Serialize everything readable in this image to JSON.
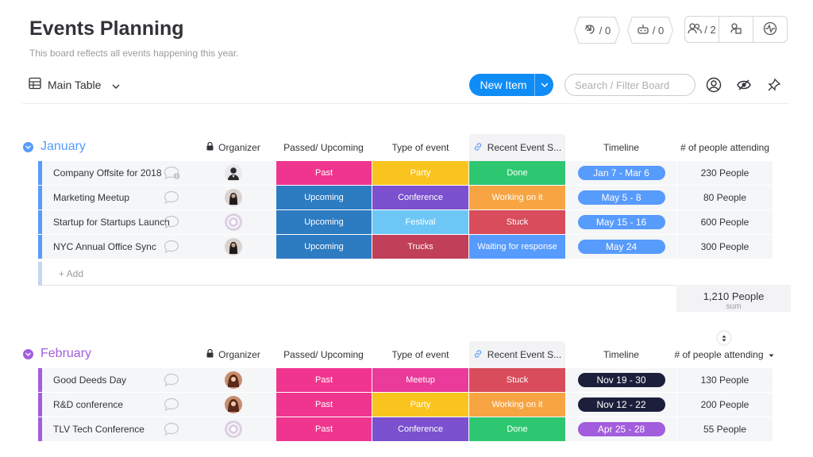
{
  "board": {
    "title": "Events Planning",
    "subtitle": "This board reflects all events happening this year."
  },
  "header_stats": {
    "activity_count": "/ 0",
    "automation_count": "/ 0",
    "members_count": "/ 2"
  },
  "toolbar": {
    "view_label": "Main Table",
    "new_item_label": "New Item",
    "search_placeholder": "Search / Filter Board"
  },
  "columns": {
    "organizer": "Organizer",
    "status": "Passed/ Upcoming",
    "type": "Type of event",
    "recent": "Recent Event S...",
    "timeline": "Timeline",
    "people": "# of people attending"
  },
  "colors": {
    "january": "#579bfc",
    "february": "#a25ddc",
    "past": "#f0358f",
    "upcoming": "#2d7bc1",
    "party": "#fac41e",
    "conference": "#7b51cf",
    "festival": "#6dc7f6",
    "trucks": "#c13f58",
    "meetup": "#ea3a9a",
    "done": "#2ec771",
    "working": "#f7a543",
    "stuck": "#d84c5b",
    "waiting": "#579bfc",
    "tl_blue": "#579bfc",
    "tl_dark": "#1c1f3b",
    "tl_purple": "#a25ddc"
  },
  "groups": [
    {
      "title": "January",
      "add_label": "+ Add",
      "sum_value": "1,210 People",
      "sum_unit": "sum",
      "rows": [
        {
          "name": "Company Offsite for 2018",
          "status": "Past",
          "type": "Party",
          "recent": "Done",
          "timeline": "Jan 7 - Mar 6",
          "people": "230 People"
        },
        {
          "name": "Marketing Meetup",
          "status": "Upcoming",
          "type": "Conference",
          "recent": "Working on it",
          "timeline": "May 5 - 8",
          "people": "80 People"
        },
        {
          "name": "Startup for Startups Launch",
          "status": "Upcoming",
          "type": "Festival",
          "recent": "Stuck",
          "timeline": "May 15 - 16",
          "people": "600 People"
        },
        {
          "name": "NYC Annual Office Sync",
          "status": "Upcoming",
          "type": "Trucks",
          "recent": "Waiting for response",
          "timeline": "May 24",
          "people": "300 People"
        }
      ]
    },
    {
      "title": "February",
      "rows": [
        {
          "name": "Good Deeds Day",
          "status": "Past",
          "type": "Meetup",
          "recent": "Stuck",
          "timeline": "Nov 19 - 30",
          "people": "130 People"
        },
        {
          "name": "R&D conference",
          "status": "Past",
          "type": "Party",
          "recent": "Working on it",
          "timeline": "Nov 12 - 22",
          "people": "200 People"
        },
        {
          "name": "TLV Tech Conference",
          "status": "Past",
          "type": "Conference",
          "recent": "Done",
          "timeline": "Apr 25 - 28",
          "people": "55 People"
        }
      ]
    }
  ]
}
